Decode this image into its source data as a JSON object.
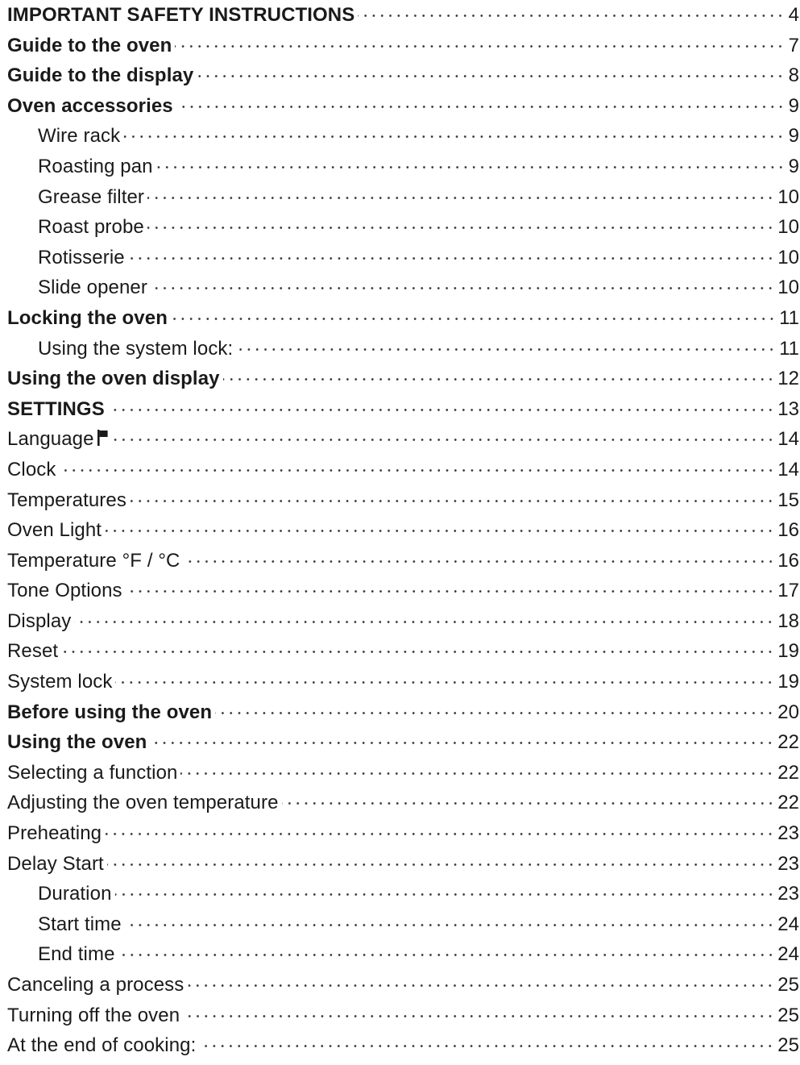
{
  "toc": {
    "entries": [
      {
        "title": "IMPORTANT SAFETY INSTRUCTIONS",
        "page": "4",
        "style": "bold",
        "level": 0
      },
      {
        "title": "Guide to the oven",
        "page": "7",
        "style": "bold",
        "level": 0
      },
      {
        "title": "Guide to the display",
        "page": "8",
        "style": "bold",
        "level": 0
      },
      {
        "title": "Oven accessories",
        "page": "9",
        "style": "bold",
        "level": 0
      },
      {
        "title": "Wire rack",
        "page": "9",
        "style": "plain",
        "level": 1
      },
      {
        "title": "Roasting pan",
        "page": "9",
        "style": "plain",
        "level": 1
      },
      {
        "title": "Grease filter",
        "page": "10",
        "style": "plain",
        "level": 1
      },
      {
        "title": "Roast probe",
        "page": "10",
        "style": "plain",
        "level": 1
      },
      {
        "title": "Rotisserie",
        "page": "10",
        "style": "plain",
        "level": 1
      },
      {
        "title": "Slide opener",
        "page": "10",
        "style": "plain",
        "level": 1
      },
      {
        "title": "Locking the oven",
        "page": "11",
        "style": "bold",
        "level": 0
      },
      {
        "title": "Using the system lock:",
        "page": "11",
        "style": "plain",
        "level": 1
      },
      {
        "title": "Using the oven display",
        "page": "12",
        "style": "bold",
        "level": 0
      },
      {
        "title": "SETTINGS",
        "page": "13",
        "style": "bold",
        "level": 0
      },
      {
        "title": "Language",
        "page": "14",
        "style": "plain",
        "level": 0,
        "icon": "flag-icon"
      },
      {
        "title": "Clock",
        "page": "14",
        "style": "plain",
        "level": 0
      },
      {
        "title": "Temperatures",
        "page": "15",
        "style": "plain",
        "level": 0
      },
      {
        "title": "Oven Light",
        "page": "16",
        "style": "plain",
        "level": 0
      },
      {
        "title": "Temperature °F / °C",
        "page": "16",
        "style": "plain",
        "level": 0
      },
      {
        "title": "Tone Options",
        "page": "17",
        "style": "plain",
        "level": 0
      },
      {
        "title": "Display",
        "page": "18",
        "style": "plain",
        "level": 0
      },
      {
        "title": "Reset",
        "page": "19",
        "style": "plain",
        "level": 0
      },
      {
        "title": "System lock",
        "page": "19",
        "style": "plain",
        "level": 0
      },
      {
        "title": "Before using the oven",
        "page": "20",
        "style": "bold",
        "level": 0
      },
      {
        "title": "Using the oven",
        "page": "22",
        "style": "bold",
        "level": 0
      },
      {
        "title": "Selecting a function",
        "page": "22",
        "style": "plain",
        "level": 0
      },
      {
        "title": "Adjusting the oven temperature",
        "page": "22",
        "style": "plain",
        "level": 0
      },
      {
        "title": "Preheating",
        "page": "23",
        "style": "plain",
        "level": 0
      },
      {
        "title": "Delay Start",
        "page": "23",
        "style": "plain",
        "level": 0
      },
      {
        "title": "Duration",
        "page": "23",
        "style": "plain",
        "level": 1
      },
      {
        "title": "Start time",
        "page": "24",
        "style": "plain",
        "level": 1
      },
      {
        "title": "End time",
        "page": "24",
        "style": "plain",
        "level": 1
      },
      {
        "title": "Canceling a process",
        "page": "25",
        "style": "plain",
        "level": 0
      },
      {
        "title": "Turning off the oven",
        "page": "25",
        "style": "plain",
        "level": 0
      },
      {
        "title": "At the end of cooking:",
        "page": "25",
        "style": "plain",
        "level": 0
      }
    ]
  }
}
